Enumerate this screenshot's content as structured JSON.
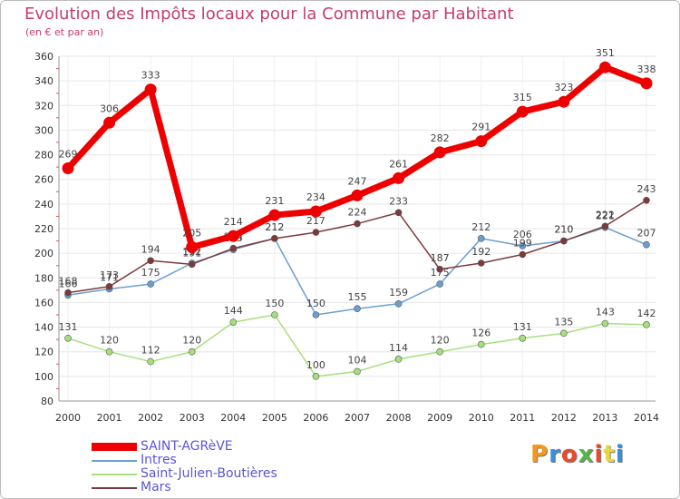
{
  "title": "Evolution des Impôts locaux pour la Commune par Habitant",
  "subtitle": "(en € et par an)",
  "brand": {
    "text": "Proxiti",
    "colors": [
      "#f39a1c",
      "#3a8fd6",
      "#e84a2a",
      "#53b54a",
      "#e84a2a",
      "#e8d83a",
      "#3a8fd6"
    ]
  },
  "chart_data": {
    "type": "line",
    "title": "Evolution des Impôts locaux pour la Commune par Habitant",
    "ylabel": "(en € et par an)",
    "x": [
      "2000",
      "2001",
      "2002",
      "2003",
      "2004",
      "2005",
      "2006",
      "2007",
      "2008",
      "2009",
      "2010",
      "2011",
      "2012",
      "2013",
      "2014"
    ],
    "ylim": [
      80,
      360
    ],
    "yticks": [
      80,
      100,
      120,
      140,
      160,
      180,
      200,
      220,
      240,
      260,
      280,
      300,
      320,
      340,
      360
    ],
    "grid": true,
    "legend_position": "bottom-left",
    "series": [
      {
        "name": "Intres",
        "color": "#6a9fd0",
        "values": [
          166,
          171,
          175,
          192,
          203,
          212,
          150,
          155,
          159,
          175,
          212,
          206,
          210,
          221,
          207
        ],
        "labels": [
          "166",
          "171",
          "175",
          "192",
          "203",
          "212",
          "150",
          "155",
          "159",
          "175",
          "212",
          "206",
          "210",
          "221",
          "207"
        ]
      },
      {
        "name": "Saint-Julien-Boutières",
        "color": "#a6e07e",
        "values": [
          131,
          120,
          112,
          120,
          144,
          150,
          100,
          104,
          114,
          120,
          126,
          131,
          135,
          143,
          142
        ],
        "labels": [
          "131",
          "120",
          "112",
          "120",
          "144",
          "150",
          "100",
          "104",
          "114",
          "120",
          "126",
          "131",
          "135",
          "143",
          "142"
        ]
      },
      {
        "name": "Mars",
        "color": "#7d3a3a",
        "values": [
          168,
          173,
          194,
          191,
          204,
          212,
          217,
          224,
          233,
          187,
          192,
          199,
          210,
          222,
          243
        ],
        "labels": [
          "168",
          "173",
          "194",
          "191",
          "204",
          "212",
          "217",
          "224",
          "233",
          "187",
          "192",
          "199",
          "210",
          "222",
          "243"
        ]
      },
      {
        "name": "SAINT-AGRèVE",
        "color": "#ee0000",
        "values": [
          269,
          306,
          333,
          205,
          214,
          231,
          234,
          247,
          261,
          282,
          291,
          315,
          323,
          351,
          338
        ],
        "labels": [
          "269",
          "306",
          "333",
          "205",
          "214",
          "231",
          "234",
          "247",
          "261",
          "282",
          "291",
          "315",
          "323",
          "351",
          "338"
        ]
      }
    ]
  },
  "legend": [
    {
      "label": "SAINT-AGRèVE",
      "color": "#ee0000"
    },
    {
      "label": "Intres",
      "color": "#6a9fd0"
    },
    {
      "label": "Saint-Julien-Boutières",
      "color": "#a6e07e"
    },
    {
      "label": "Mars",
      "color": "#7d3a3a"
    }
  ]
}
